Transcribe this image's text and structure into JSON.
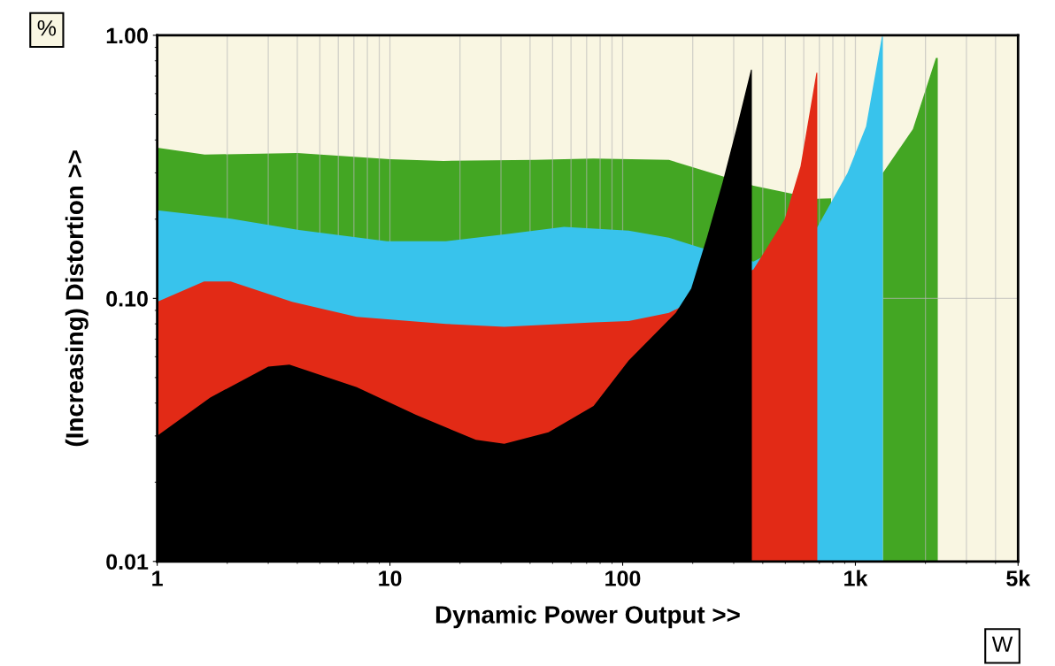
{
  "chart_data": {
    "type": "area",
    "xlabel": "Dynamic Power Output >>",
    "ylabel": "(Increasing) Distortion >>",
    "annotations": [
      "%",
      "W"
    ],
    "log": "xy",
    "grid": true,
    "xlim": [
      1,
      5000
    ],
    "xticks": [
      1,
      10,
      100,
      {
        "value": 1000,
        "label": "1k"
      },
      {
        "value": 5000,
        "label": "5k"
      }
    ],
    "ylim": [
      0.01,
      1
    ],
    "yticks": [
      {
        "value": 0.01,
        "label": "0.01"
      },
      {
        "value": 0.1,
        "label": "0.10"
      },
      {
        "value": 1,
        "label": "1.00"
      }
    ],
    "series": [
      {
        "color": "#43a623",
        "x": [
          1,
          1.6,
          4,
          10,
          17,
          42,
          75,
          158,
          365,
          680,
          786,
          1000,
          1312,
          1766,
          2218,
          2259
        ],
        "values": [
          0.374,
          0.352,
          0.357,
          0.338,
          0.333,
          0.336,
          0.34,
          0.336,
          0.268,
          0.239,
          0.24,
          null,
          0.3,
          0.44,
          0.82,
          0.82
        ]
      },
      {
        "color": "#38c3ec",
        "x": [
          1,
          2.07,
          4.06,
          9.7,
          17.4,
          31,
          56,
          106,
          158,
          216,
          365,
          680,
          925,
          1111,
          1300,
          1312
        ],
        "values": [
          0.216,
          0.201,
          0.182,
          0.165,
          0.165,
          0.175,
          0.187,
          0.181,
          0.17,
          0.156,
          0.138,
          0.184,
          0.3,
          0.45,
          0.99,
          0.99
        ]
      },
      {
        "color": "#e22a16",
        "x": [
          1,
          1.59,
          2.07,
          3.8,
          7.2,
          17.4,
          31,
          75,
          106,
          158,
          365,
          497,
          581,
          680,
          686
        ],
        "values": [
          0.097,
          0.116,
          0.116,
          0.097,
          0.085,
          0.08,
          0.078,
          0.081,
          0.082,
          0.088,
          0.129,
          0.2,
          0.318,
          0.72,
          0.72
        ]
      },
      {
        "color": "#000000",
        "x": [
          1,
          1.69,
          3.0,
          3.7,
          7.2,
          13,
          23.4,
          31,
          48,
          75,
          106,
          169,
          197,
          230,
          269,
          315,
          356,
          359
        ],
        "values": [
          0.03,
          0.042,
          0.055,
          0.056,
          0.046,
          0.036,
          0.029,
          0.028,
          0.031,
          0.039,
          0.058,
          0.088,
          0.109,
          0.17,
          0.277,
          0.476,
          0.74,
          0.74
        ]
      }
    ]
  }
}
